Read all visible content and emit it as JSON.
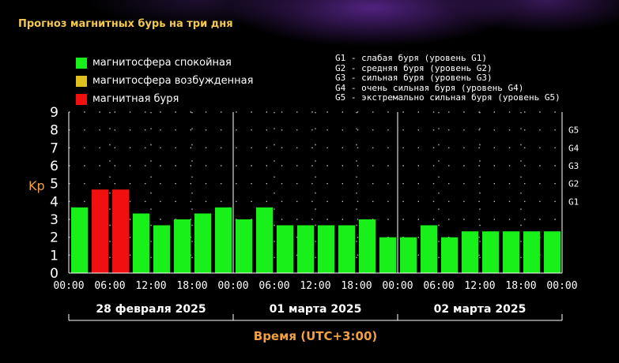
{
  "title": "Прогноз магнитных бурь на три дня",
  "colors": {
    "calm": "#19f019",
    "excited": "#e0c020",
    "storm": "#f01010"
  },
  "legend": {
    "calm": "магнитосфера спокойная",
    "excited": "магнитосфера возбужденная",
    "storm": "магнитная буря"
  },
  "g_levels": [
    "G1 - слабая буря (уровень G1)",
    "G2 - средняя буря (уровень G2)",
    "G3 - сильная буря (уровень G3)",
    "G4 - очень сильная буря (уровень G4)",
    "G5 - экстремально сильная буря (уровень G5)"
  ],
  "chart_data": {
    "type": "bar",
    "ylabel": "Kp",
    "xlabel": "Время (UTC+3:00)",
    "ylim": [
      0,
      9
    ],
    "y_ticks": [
      "0",
      "1",
      "2",
      "3",
      "4",
      "5",
      "6",
      "7",
      "8",
      "9"
    ],
    "right_axis_ticks": [
      {
        "label": "G1",
        "kp": 4
      },
      {
        "label": "G2",
        "kp": 5
      },
      {
        "label": "G3",
        "kp": 6
      },
      {
        "label": "G4",
        "kp": 7
      },
      {
        "label": "G5",
        "kp": 8
      }
    ],
    "x_tick_labels": [
      "00:00",
      "06:00",
      "12:00",
      "18:00",
      "00:00",
      "06:00",
      "12:00",
      "18:00",
      "00:00",
      "06:00",
      "12:00",
      "18:00",
      "00:00"
    ],
    "days": [
      "28 февраля 2025",
      "01 марта 2025",
      "02 марта 2025"
    ],
    "grid": "dotted",
    "values": [
      3.67,
      4.67,
      4.67,
      3.33,
      2.67,
      3.0,
      3.33,
      3.67,
      3.0,
      3.67,
      2.67,
      2.67,
      2.67,
      2.67,
      3.0,
      2.0,
      2.0,
      2.67,
      2.0,
      2.33,
      2.33,
      2.33,
      2.33,
      2.33
    ],
    "levels": [
      "calm",
      "storm",
      "storm",
      "calm",
      "calm",
      "calm",
      "calm",
      "calm",
      "calm",
      "calm",
      "calm",
      "calm",
      "calm",
      "calm",
      "calm",
      "calm",
      "calm",
      "calm",
      "calm",
      "calm",
      "calm",
      "calm",
      "calm",
      "calm"
    ]
  }
}
